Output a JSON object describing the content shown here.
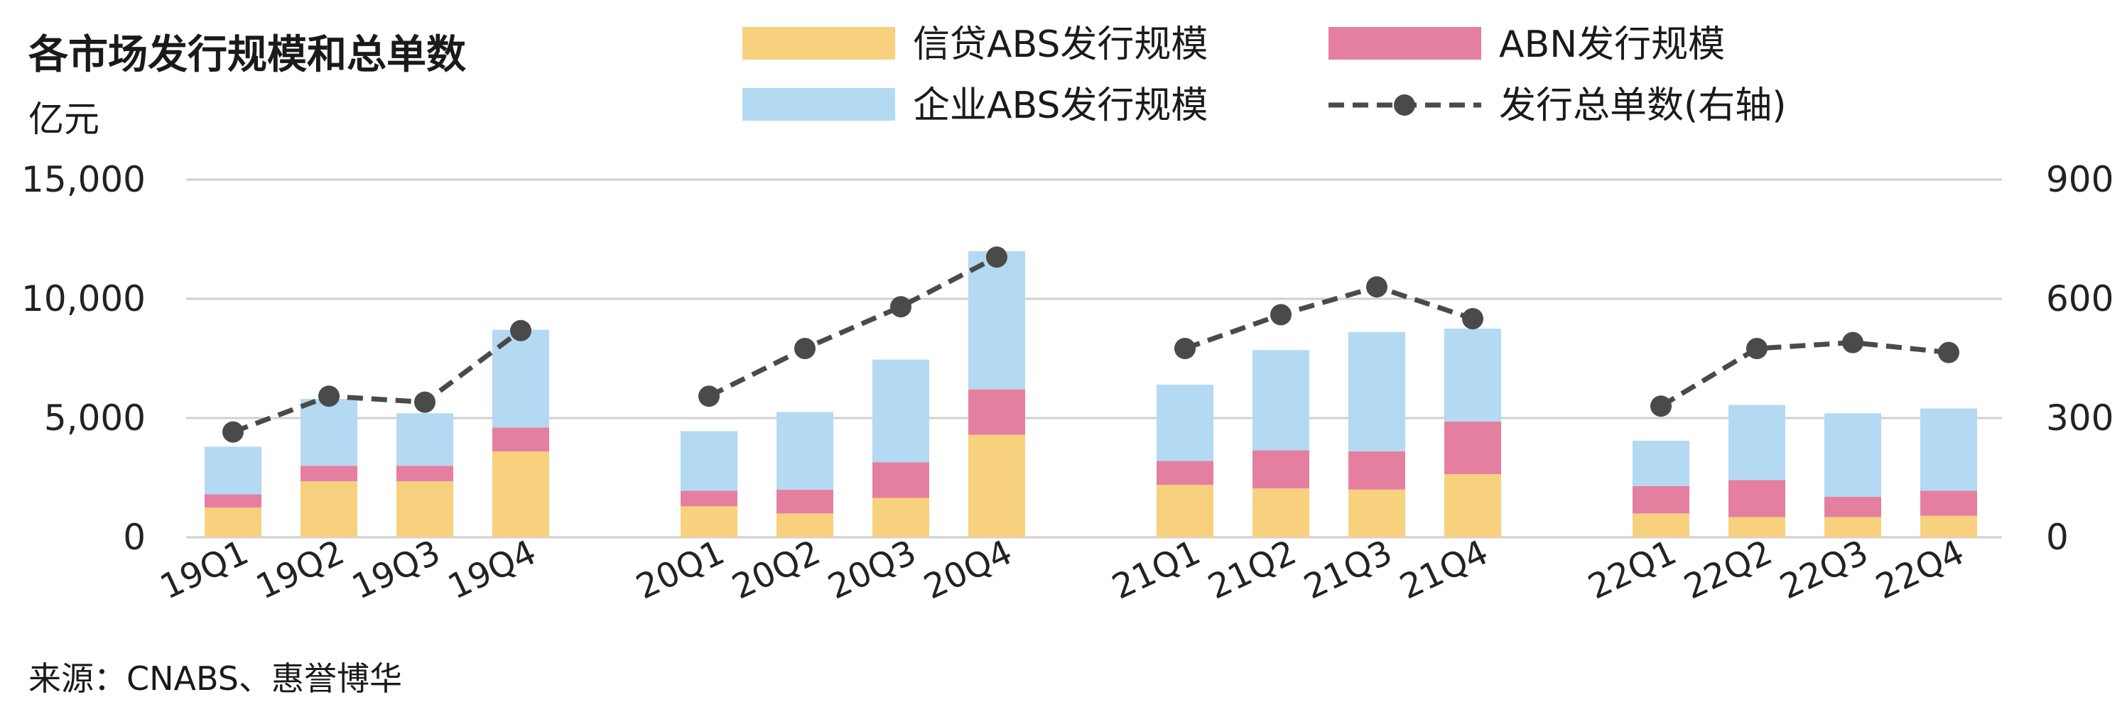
{
  "title": "各市场发行规模和总单数",
  "unit_label": "亿元",
  "source": "来源：CNABS、惠誉博华",
  "colors": {
    "credit_abs": "#f7d17e",
    "abn": "#e57fa0",
    "corp_abs": "#b4d9f2",
    "count_line": "#4a4a4a",
    "grid": "#d0d0d0"
  },
  "legend": [
    {
      "label": "信贷ABS发行规模",
      "key": "credit_abs",
      "kind": "bar"
    },
    {
      "label": "ABN发行规模",
      "key": "abn",
      "kind": "bar"
    },
    {
      "label": "企业ABS发行规模",
      "key": "corp_abs",
      "kind": "bar"
    },
    {
      "label": "发行总单数(右轴)",
      "key": "count_line",
      "kind": "line"
    }
  ],
  "chart_data": {
    "type": "bar",
    "stacked": true,
    "categories": [
      "19Q1",
      "19Q2",
      "19Q3",
      "19Q4",
      "20Q1",
      "20Q2",
      "20Q3",
      "20Q4",
      "21Q1",
      "21Q2",
      "21Q3",
      "21Q4",
      "22Q1",
      "22Q2",
      "22Q3",
      "22Q4"
    ],
    "groups": [
      4,
      4,
      4,
      4
    ],
    "series": [
      {
        "name": "信贷ABS发行规模",
        "axis": "left",
        "values": [
          1250,
          2350,
          2350,
          3600,
          1300,
          1000,
          1650,
          4300,
          2200,
          2050,
          2000,
          2650,
          1000,
          850,
          850,
          900
        ]
      },
      {
        "name": "ABN发行规模",
        "axis": "left",
        "values": [
          550,
          650,
          650,
          1000,
          650,
          1000,
          1500,
          1900,
          1000,
          1600,
          1600,
          2200,
          1150,
          1550,
          850,
          1050
        ]
      },
      {
        "name": "企业ABS发行规模",
        "axis": "left",
        "values": [
          2000,
          2800,
          2200,
          4100,
          2500,
          3250,
          4300,
          5800,
          3200,
          4200,
          5000,
          3900,
          1900,
          3150,
          3500,
          3450
        ]
      },
      {
        "name": "发行总单数(右轴)",
        "axis": "right",
        "type": "line",
        "values": [
          265,
          355,
          340,
          520,
          355,
          475,
          580,
          705,
          475,
          560,
          630,
          550,
          330,
          475,
          490,
          465
        ]
      }
    ],
    "y_left": {
      "min": 0,
      "max": 15000,
      "ticks": [
        0,
        5000,
        10000,
        15000
      ],
      "tick_labels": [
        "0",
        "5,000",
        "10,000",
        "15,000"
      ]
    },
    "y_right": {
      "min": 0,
      "max": 900,
      "ticks": [
        0,
        300,
        600,
        900
      ],
      "tick_labels": [
        "0",
        "300",
        "600",
        "900"
      ]
    },
    "grid": true,
    "legend_position": "top"
  }
}
